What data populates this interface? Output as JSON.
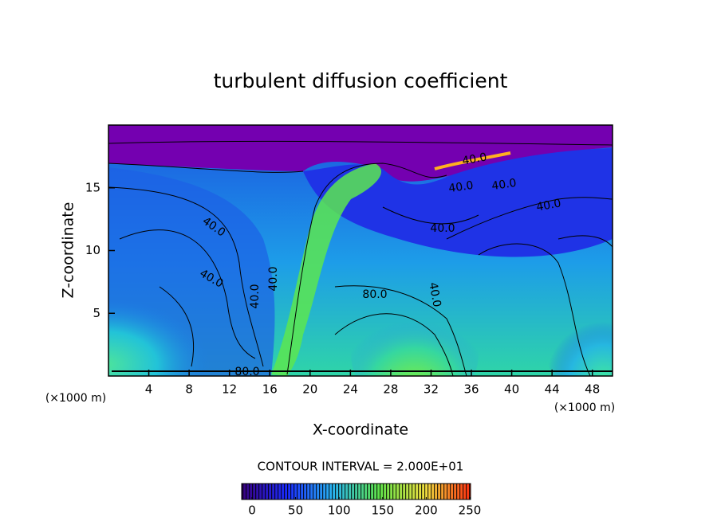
{
  "chart_data": {
    "type": "contour",
    "title": "turbulent diffusion coefficient",
    "x_label": "X-coordinate",
    "y_label": "Z-coordinate",
    "x_scale_label": "(×1000 m)",
    "y_scale_label": "(×1000 m)",
    "xlim": [
      0,
      50
    ],
    "ylim": [
      0,
      20
    ],
    "xticks": [
      4,
      8,
      12,
      16,
      20,
      24,
      28,
      32,
      36,
      40,
      44,
      48
    ],
    "yticks": [
      5,
      10,
      15
    ],
    "contour_labels": [
      {
        "value": 40,
        "label": "40.0"
      },
      {
        "value": 40,
        "label": "40.0"
      },
      {
        "value": 40,
        "label": "40.0"
      },
      {
        "value": 40,
        "label": "40.0"
      },
      {
        "value": 40,
        "label": "40.0"
      },
      {
        "value": 40,
        "label": "40.0"
      },
      {
        "value": 40,
        "label": "40.0"
      },
      {
        "value": 40,
        "label": "40.0"
      },
      {
        "value": 40,
        "label": "40.0"
      },
      {
        "value": 40,
        "label": "40.0"
      },
      {
        "value": 80,
        "label": "80.0"
      },
      {
        "value": 80,
        "label": "80.0"
      }
    ],
    "colorbar": {
      "title": "CONTOUR INTERVAL = 2.000E+01",
      "lim": [
        0,
        250
      ],
      "ticks": [
        0,
        50,
        100,
        150,
        200,
        250
      ],
      "colors": [
        "#3a0080",
        "#1a2cff",
        "#29b6f0",
        "#5fe34a",
        "#f0e040",
        "#ff3010"
      ]
    }
  }
}
